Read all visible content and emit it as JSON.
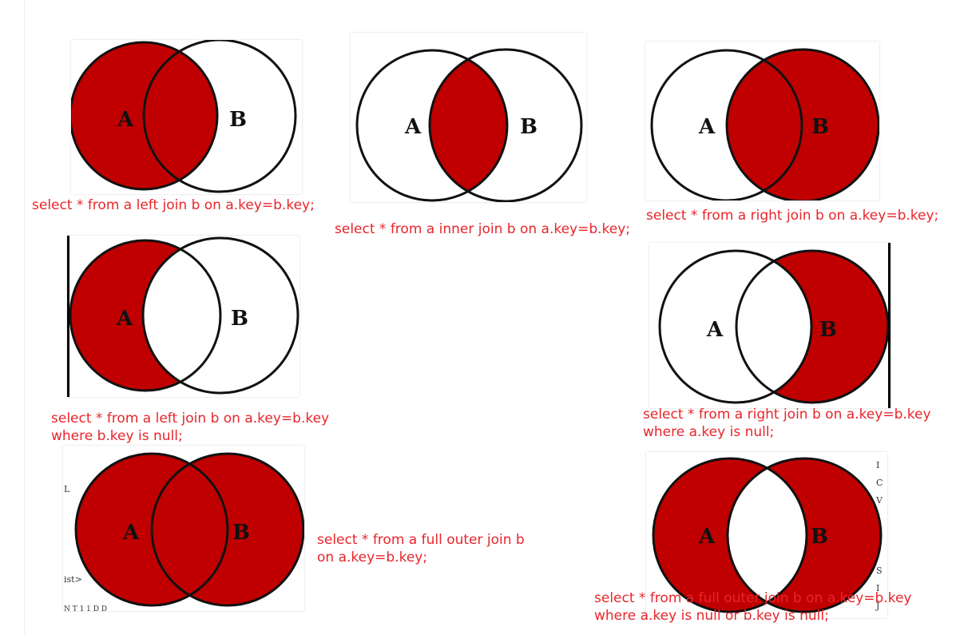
{
  "colors": {
    "fill": "#c00000",
    "stroke": "#111111",
    "caption": "#e8252b"
  },
  "labels": {
    "a": "A",
    "b": "B"
  },
  "diagrams": [
    {
      "id": "left-join",
      "captions": [
        "select * from a left join b on a.key=b.key;"
      ],
      "shade": "a"
    },
    {
      "id": "inner-join",
      "captions": [
        "select * from a inner join b on a.key=b.key;"
      ],
      "shade": "inter"
    },
    {
      "id": "right-join",
      "captions": [
        "select * from a right join b on a.key=b.key;"
      ],
      "shade": "b"
    },
    {
      "id": "left-join-null",
      "captions": [
        "select * from a left join b on a.key=b.key",
        "where b.key is null;"
      ],
      "shade": "a-only"
    },
    {
      "id": "right-join-null",
      "captions": [
        "select * from a right join b on a.key=b.key",
        "where a.key is null;"
      ],
      "shade": "b-only"
    },
    {
      "id": "full-outer-join",
      "captions": [
        "select * from a full outer join b",
        "on a.key=b.key;"
      ],
      "shade": "both"
    },
    {
      "id": "full-outer-join-null",
      "captions": [
        "select * from a full outer join b on a.key=b.key",
        "where a.key is null or b.key is null;"
      ],
      "shade": "xor"
    }
  ],
  "stray_text": {
    "full_outer_left_top": "L",
    "full_outer_left_bottom": "ist>",
    "full_outer_left_under": "N T 1 1 D D",
    "xor_right": [
      "I",
      "C",
      "V",
      "S",
      "I",
      "J"
    ]
  }
}
